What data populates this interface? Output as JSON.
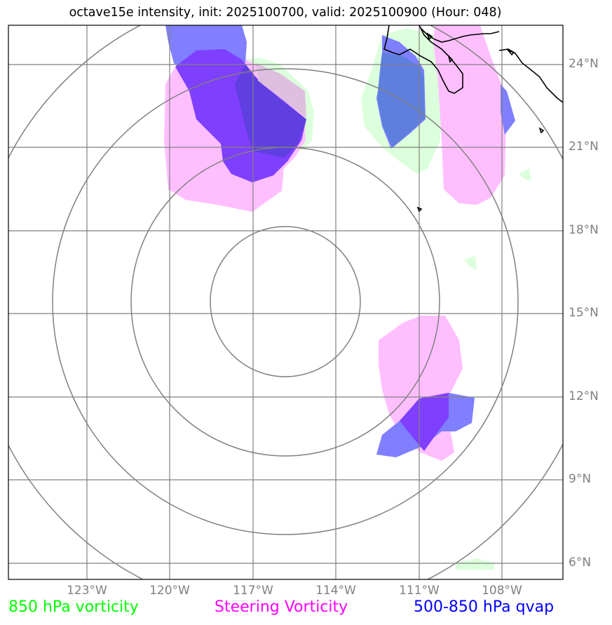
{
  "title": "octave15e intensity, init: 2025100700, valid: 2025100900 (Hour: 048)",
  "lon_labels": [
    "123°W",
    "120°W",
    "117°W",
    "114°W",
    "111°W",
    "108°W"
  ],
  "lat_labels": [
    "24°N",
    "21°N",
    "18°N",
    "15°N",
    "12°N",
    "9°N",
    "6°N"
  ],
  "legend": [
    {
      "label": "850 hPa vorticity",
      "color": "#00ff00"
    },
    {
      "label": "Steering Vorticity",
      "color": "#ff00ff"
    },
    {
      "label": "500-850 hPa qvap",
      "color": "#0000ff"
    }
  ],
  "colors": {
    "grid": "#808080",
    "range_ring": "#808080",
    "vort850": "#dcffdc",
    "steering": "#ffbfff",
    "qvap": "#7f7fff",
    "overlap": "#7f3fff",
    "coast": "#000000"
  }
}
